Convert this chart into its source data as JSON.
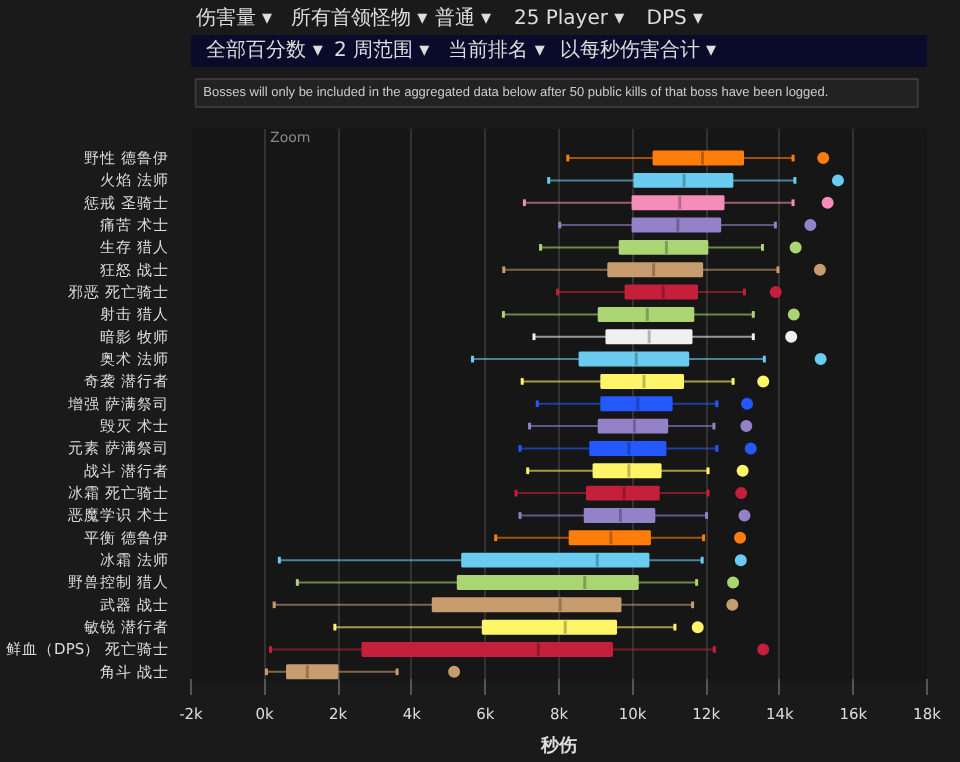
{
  "chart_data": {
    "type": "box",
    "orientation": "horizontal",
    "xlabel": "秒伤",
    "annotations": [
      "伤害量 ▾",
      "所有首领怪物 ▾",
      "普通 ▾",
      "25 Player ▾",
      "DPS ▾",
      "全部百分数 ▾",
      "2 周范围 ▾",
      "当前排名 ▾",
      "以每秒伤害合计 ▾",
      "Bosses will only be included in the aggregated data below after 50 public kills of that boss have been logged.",
      "Zoom"
    ],
    "categories": [
      "野性 德鲁伊",
      "火焰 法师",
      "惩戒 圣骑士",
      "痛苦 术士",
      "生存 猎人",
      "狂怒 战士",
      "邪恶 死亡骑士",
      "射击 猎人",
      "暗影 牧师",
      "奥术 法师",
      "奇袭 潜行者",
      "增强 萨满祭司",
      "毁灭 术士",
      "元素 萨满祭司",
      "战斗 潜行者",
      "冰霜 死亡骑士",
      "恶魔学识 术士",
      "平衡 德鲁伊",
      "冰霜 法师",
      "野兽控制 猎人",
      "武器 战士",
      "敏锐 潜行者",
      "鲜血（DPS） 死亡骑士",
      "角斗 战士"
    ],
    "colors": [
      "#ff7d0a",
      "#69ccf0",
      "#f58cba",
      "#9482c9",
      "#abd473",
      "#c79c6e",
      "#c41f3b",
      "#abd473",
      "#f0f0f0",
      "#69ccf0",
      "#fff569",
      "#2459ff",
      "#9482c9",
      "#2459ff",
      "#fff569",
      "#c41f3b",
      "#9482c9",
      "#ff7d0a",
      "#69ccf0",
      "#abd473",
      "#c79c6e",
      "#fff569",
      "#c41f3b",
      "#c79c6e"
    ],
    "boxes": [
      {
        "low": 8240,
        "q1": 10570,
        "median": 11900,
        "q3": 13000,
        "high": 14360,
        "outliers": [
          15180
        ]
      },
      {
        "low": 7720,
        "q1": 10050,
        "median": 11400,
        "q3": 12710,
        "high": 14410,
        "outliers": [
          15580
        ]
      },
      {
        "low": 7060,
        "q1": 10000,
        "median": 11280,
        "q3": 12470,
        "high": 14360,
        "outliers": [
          15300
        ]
      },
      {
        "low": 8020,
        "q1": 10000,
        "median": 11230,
        "q3": 12380,
        "high": 13880,
        "outliers": [
          14830
        ]
      },
      {
        "low": 7500,
        "q1": 9650,
        "median": 10920,
        "q3": 12030,
        "high": 13530,
        "outliers": [
          14430
        ]
      },
      {
        "low": 6500,
        "q1": 9340,
        "median": 10570,
        "q3": 11890,
        "high": 13950,
        "outliers": [
          15090
        ]
      },
      {
        "low": 7960,
        "q1": 9810,
        "median": 10830,
        "q3": 11750,
        "high": 13040,
        "outliers": [
          13890
        ]
      },
      {
        "low": 6490,
        "q1": 9080,
        "median": 10400,
        "q3": 11650,
        "high": 13280,
        "outliers": [
          14380
        ]
      },
      {
        "low": 7320,
        "q1": 9290,
        "median": 10450,
        "q3": 11600,
        "high": 13280,
        "outliers": [
          14310
        ]
      },
      {
        "low": 5650,
        "q1": 8560,
        "median": 10100,
        "q3": 11510,
        "high": 13580,
        "outliers": [
          15110
        ]
      },
      {
        "low": 7000,
        "q1": 9150,
        "median": 10310,
        "q3": 11370,
        "high": 12730,
        "outliers": [
          13550
        ]
      },
      {
        "low": 7410,
        "q1": 9150,
        "median": 10140,
        "q3": 11060,
        "high": 12290,
        "outliers": [
          13110
        ]
      },
      {
        "low": 7200,
        "q1": 9080,
        "median": 10050,
        "q3": 10940,
        "high": 12210,
        "outliers": [
          13090
        ]
      },
      {
        "low": 6940,
        "q1": 8850,
        "median": 9900,
        "q3": 10890,
        "high": 12290,
        "outliers": [
          13210
        ]
      },
      {
        "low": 7150,
        "q1": 8940,
        "median": 9900,
        "q3": 10760,
        "high": 12050,
        "outliers": [
          12990
        ]
      },
      {
        "low": 6830,
        "q1": 8760,
        "median": 9770,
        "q3": 10710,
        "high": 12050,
        "outliers": [
          12950
        ]
      },
      {
        "low": 6940,
        "q1": 8700,
        "median": 9670,
        "q3": 10590,
        "high": 12010,
        "outliers": [
          13040
        ]
      },
      {
        "low": 6280,
        "q1": 8290,
        "median": 9410,
        "q3": 10470,
        "high": 11930,
        "outliers": [
          12920
        ]
      },
      {
        "low": 400,
        "q1": 5370,
        "median": 9040,
        "q3": 10430,
        "high": 11890,
        "outliers": [
          12940
        ]
      },
      {
        "low": 890,
        "q1": 5250,
        "median": 8700,
        "q3": 10140,
        "high": 11740,
        "outliers": [
          12730
        ]
      },
      {
        "low": 260,
        "q1": 4570,
        "median": 8030,
        "q3": 9670,
        "high": 11630,
        "outliers": [
          12710
        ]
      },
      {
        "low": 1910,
        "q1": 5930,
        "median": 8170,
        "q3": 9550,
        "high": 11150,
        "outliers": [
          11770
        ]
      },
      {
        "low": 160,
        "q1": 2660,
        "median": 7440,
        "q3": 9440,
        "high": 12220,
        "outliers": [
          13550
        ]
      },
      {
        "low": 50,
        "q1": 610,
        "median": 1160,
        "q3": 1980,
        "high": 3600,
        "outliers": [
          5150
        ]
      }
    ],
    "xlim": [
      -2000,
      18000
    ],
    "xticks": [
      {
        "value": -2000,
        "label": "-2k"
      },
      {
        "value": 0,
        "label": "0k"
      },
      {
        "value": 2000,
        "label": "2k"
      },
      {
        "value": 4000,
        "label": "4k"
      },
      {
        "value": 6000,
        "label": "6k"
      },
      {
        "value": 8000,
        "label": "8k"
      },
      {
        "value": 10000,
        "label": "10k"
      },
      {
        "value": 12000,
        "label": "12k"
      },
      {
        "value": 14000,
        "label": "14k"
      },
      {
        "value": 16000,
        "label": "16k"
      },
      {
        "value": 18000,
        "label": "18k"
      }
    ],
    "grid": "x"
  }
}
